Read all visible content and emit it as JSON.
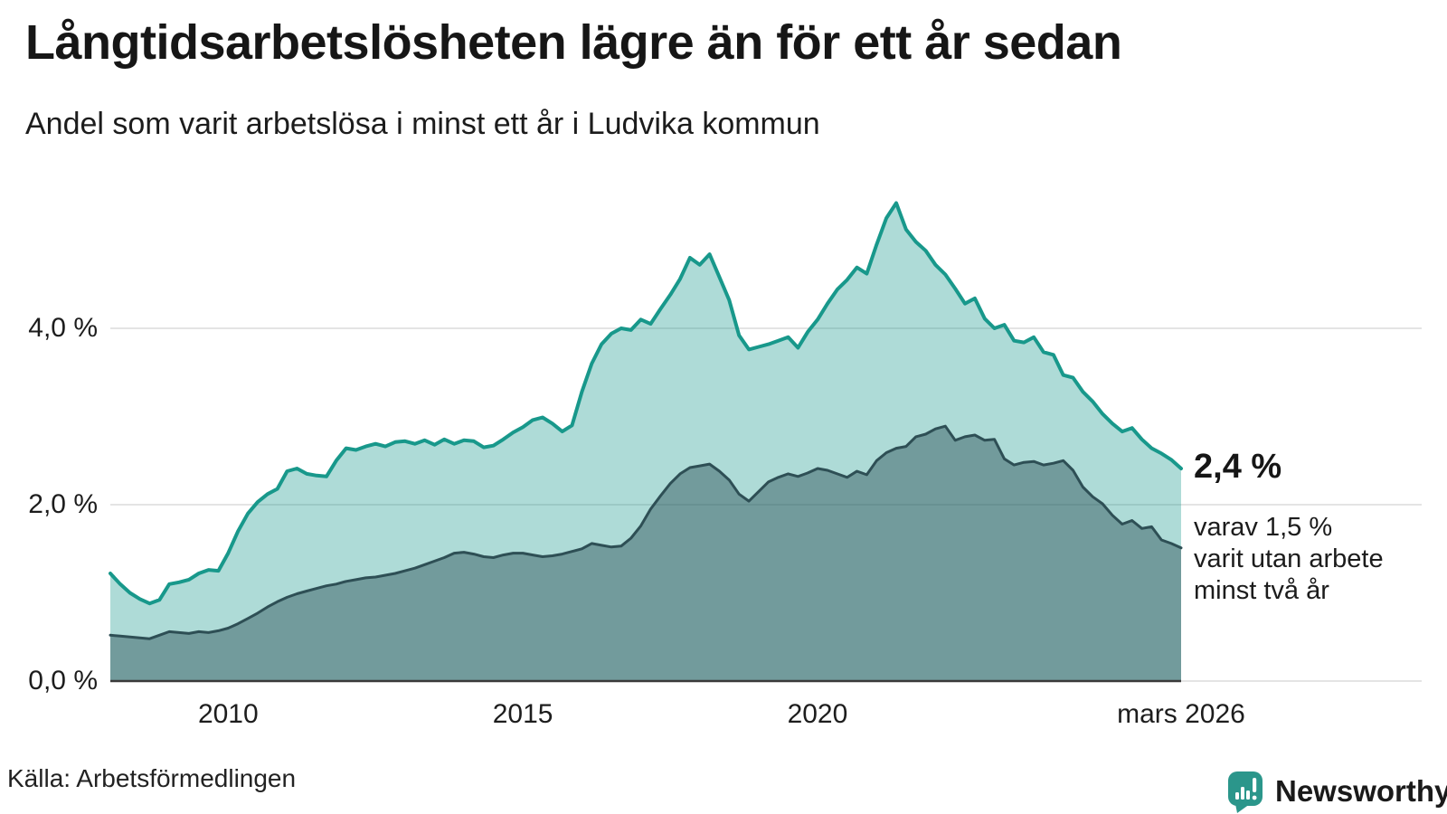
{
  "header": {
    "title": "Långtidsarbetslösheten lägre än för ett år sedan",
    "subtitle": "Andel som varit arbetslösa i minst ett år i Ludvika kommun"
  },
  "chart_data": {
    "type": "area",
    "unit": "%",
    "title": "Långtidsarbetslösheten lägre än för ett år sedan",
    "x_start": 2008.0,
    "x_end": 2026.17,
    "points_interval_months": 2,
    "ylim": [
      0,
      5.6
    ],
    "grid": true,
    "y_ticks": [
      {
        "value": 0,
        "label": "0,0 %"
      },
      {
        "value": 2,
        "label": "2,0 %"
      },
      {
        "value": 4,
        "label": "4,0 %"
      }
    ],
    "x_ticks": [
      {
        "year": 2010,
        "label": "2010"
      },
      {
        "year": 2015,
        "label": "2015"
      },
      {
        "year": 2020,
        "label": "2020"
      },
      {
        "year": 2026.17,
        "label": "mars 2026"
      }
    ],
    "series": [
      {
        "name": "Andel arbetslösa minst ett år",
        "line_color": "#18988b",
        "fill_color": "rgba(24,152,139,0.35)",
        "values": [
          1.22,
          1.1,
          1.0,
          0.93,
          0.88,
          0.92,
          1.1,
          1.12,
          1.15,
          1.22,
          1.26,
          1.25,
          1.45,
          1.7,
          1.9,
          2.03,
          2.12,
          2.18,
          2.38,
          2.41,
          2.35,
          2.33,
          2.32,
          2.5,
          2.64,
          2.62,
          2.66,
          2.69,
          2.66,
          2.71,
          2.72,
          2.69,
          2.73,
          2.68,
          2.74,
          2.69,
          2.73,
          2.72,
          2.65,
          2.67,
          2.74,
          2.82,
          2.88,
          2.96,
          2.99,
          2.92,
          2.83,
          2.9,
          3.28,
          3.6,
          3.82,
          3.94,
          4.0,
          3.98,
          4.1,
          4.05,
          4.22,
          4.38,
          4.56,
          4.8,
          4.72,
          4.84,
          4.58,
          4.32,
          3.92,
          3.76,
          3.79,
          3.82,
          3.86,
          3.9,
          3.78,
          3.96,
          4.1,
          4.28,
          4.44,
          4.55,
          4.69,
          4.62,
          4.95,
          5.25,
          5.42,
          5.12,
          4.98,
          4.88,
          4.72,
          4.61,
          4.45,
          4.28,
          4.34,
          4.11,
          4.0,
          4.04,
          3.86,
          3.84,
          3.9,
          3.73,
          3.7,
          3.47,
          3.44,
          3.28,
          3.17,
          3.03,
          2.92,
          2.83,
          2.87,
          2.74,
          2.64,
          2.58,
          2.51,
          2.41
        ]
      },
      {
        "name": "Andel arbetslösa minst två år",
        "line_color": "#2e4f55",
        "fill_color": "rgba(43,77,84,0.45)",
        "values": [
          0.52,
          0.51,
          0.5,
          0.49,
          0.48,
          0.52,
          0.56,
          0.55,
          0.54,
          0.56,
          0.55,
          0.57,
          0.6,
          0.65,
          0.71,
          0.77,
          0.84,
          0.9,
          0.95,
          0.99,
          1.02,
          1.05,
          1.08,
          1.1,
          1.13,
          1.15,
          1.17,
          1.18,
          1.2,
          1.22,
          1.25,
          1.28,
          1.32,
          1.36,
          1.4,
          1.45,
          1.46,
          1.44,
          1.41,
          1.4,
          1.43,
          1.45,
          1.45,
          1.43,
          1.41,
          1.42,
          1.44,
          1.47,
          1.5,
          1.56,
          1.54,
          1.52,
          1.53,
          1.62,
          1.76,
          1.95,
          2.1,
          2.24,
          2.35,
          2.42,
          2.44,
          2.46,
          2.38,
          2.28,
          2.12,
          2.04,
          2.15,
          2.26,
          2.31,
          2.35,
          2.32,
          2.36,
          2.41,
          2.39,
          2.35,
          2.31,
          2.38,
          2.34,
          2.5,
          2.59,
          2.64,
          2.66,
          2.77,
          2.8,
          2.86,
          2.89,
          2.73,
          2.77,
          2.79,
          2.73,
          2.74,
          2.52,
          2.45,
          2.48,
          2.49,
          2.45,
          2.47,
          2.5,
          2.39,
          2.2,
          2.09,
          2.01,
          1.88,
          1.78,
          1.82,
          1.73,
          1.75,
          1.6,
          1.56,
          1.51
        ]
      }
    ]
  },
  "annotation": {
    "value_label": "2,4 %",
    "detail_lines": [
      "varav 1,5 %",
      "varit utan arbete",
      "minst två år"
    ]
  },
  "source": {
    "label": "Källa: Arbetsförmedlingen"
  },
  "logo": {
    "brand": "Newsworthy",
    "color": "#2b968b"
  }
}
